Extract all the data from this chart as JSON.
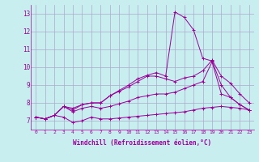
{
  "xlabel": "Windchill (Refroidissement éolien,°C)",
  "x_ticks": [
    0,
    1,
    2,
    3,
    4,
    5,
    6,
    7,
    8,
    9,
    10,
    11,
    12,
    13,
    14,
    15,
    16,
    17,
    18,
    19,
    20,
    21,
    22,
    23
  ],
  "ylim": [
    6.5,
    13.5
  ],
  "xlim": [
    -0.5,
    23.5
  ],
  "y_ticks": [
    7,
    8,
    9,
    10,
    11,
    12,
    13
  ],
  "background_color": "#c8eef0",
  "grid_color": "#aaaacc",
  "line_color": "#990099",
  "series": [
    [
      7.2,
      7.1,
      7.3,
      7.2,
      6.9,
      7.0,
      7.2,
      7.1,
      7.1,
      7.15,
      7.2,
      7.25,
      7.3,
      7.35,
      7.4,
      7.45,
      7.5,
      7.6,
      7.7,
      7.75,
      7.8,
      7.75,
      7.7,
      7.6
    ],
    [
      7.2,
      7.1,
      7.3,
      7.8,
      7.5,
      7.7,
      7.8,
      7.7,
      7.8,
      7.95,
      8.1,
      8.3,
      8.4,
      8.5,
      8.5,
      8.6,
      8.8,
      9.0,
      9.2,
      10.3,
      8.5,
      8.3,
      7.9,
      7.6
    ],
    [
      7.2,
      7.1,
      7.3,
      7.8,
      7.7,
      7.9,
      8.0,
      8.0,
      8.4,
      8.65,
      8.9,
      9.2,
      9.5,
      9.5,
      9.35,
      9.2,
      9.4,
      9.5,
      9.8,
      10.4,
      9.5,
      9.1,
      8.5,
      8.0
    ],
    [
      7.2,
      7.1,
      7.3,
      7.8,
      7.6,
      7.9,
      8.0,
      8.0,
      8.4,
      8.7,
      9.0,
      9.35,
      9.55,
      9.7,
      9.5,
      13.1,
      12.8,
      12.1,
      10.5,
      10.35,
      9.0,
      8.3,
      7.9,
      7.6
    ]
  ]
}
